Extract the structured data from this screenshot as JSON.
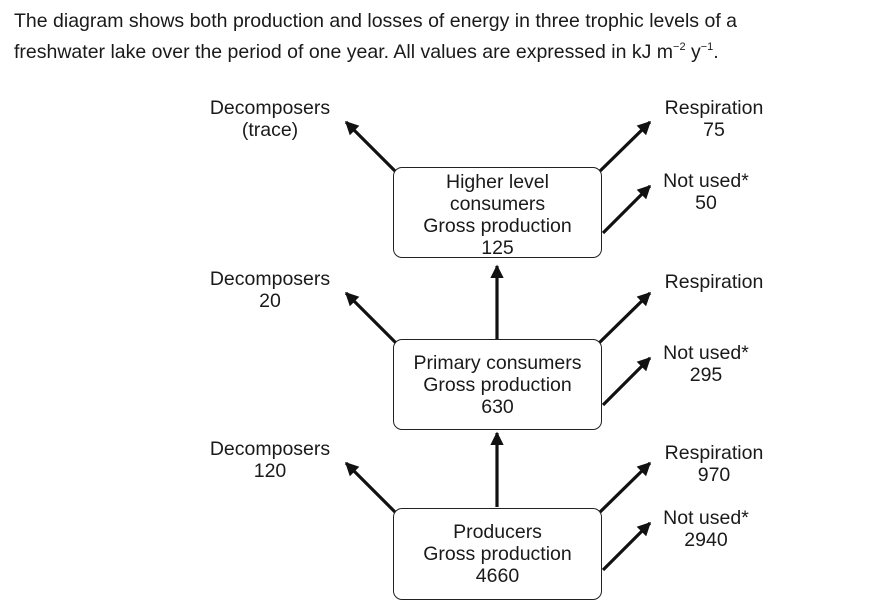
{
  "intro": {
    "line1": "The diagram shows both production and losses of energy in three trophic levels of a",
    "line2_text": "freshwater lake over the period of one year.  All values are expressed in kJ m",
    "exp_m": "−2",
    "unit_y": " y",
    "exp_y": "−1",
    "end": "."
  },
  "levels": {
    "higher": {
      "box": [
        "Higher level",
        "consumers",
        "Gross production",
        "125"
      ],
      "decomposers": [
        "Decomposers",
        "(trace)"
      ],
      "respiration": [
        "Respiration",
        "75"
      ],
      "not_used": [
        "Not used*",
        "50"
      ]
    },
    "primary": {
      "box": [
        "Primary consumers",
        "Gross production",
        "630"
      ],
      "decomposers": [
        "Decomposers",
        "20"
      ],
      "respiration": [
        "Respiration"
      ],
      "not_used": [
        "Not used*",
        "295"
      ]
    },
    "producers": {
      "box": [
        "Producers",
        "Gross production",
        "4660"
      ],
      "decomposers": [
        "Decomposers",
        "120"
      ],
      "respiration": [
        "Respiration",
        "970"
      ],
      "not_used": [
        "Not used*",
        "2940"
      ]
    }
  }
}
